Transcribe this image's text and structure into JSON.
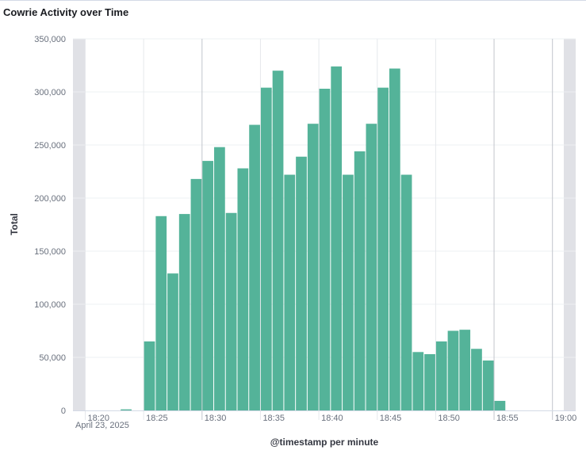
{
  "panel": {
    "title": "Cowrie Activity over Time"
  },
  "chart_data": {
    "type": "bar",
    "title": "Cowrie Activity over Time",
    "xlabel": "@timestamp per minute",
    "ylabel": "Total",
    "date_label": "April 23, 2025",
    "ylim": [
      0,
      350000
    ],
    "y_ticks": [
      0,
      50000,
      100000,
      150000,
      200000,
      250000,
      300000,
      350000
    ],
    "y_tick_labels": [
      "0",
      "50,000",
      "100,000",
      "150,000",
      "200,000",
      "250,000",
      "300,000",
      "350,000"
    ],
    "x_ticks": [
      "18:20",
      "18:25",
      "18:30",
      "18:35",
      "18:40",
      "18:45",
      "18:50",
      "18:55",
      "19:00"
    ],
    "grid": true,
    "bar_color": "#54b399",
    "categories": [
      "18:21",
      "18:22",
      "18:23",
      "18:24",
      "18:25",
      "18:26",
      "18:27",
      "18:28",
      "18:29",
      "18:30",
      "18:31",
      "18:32",
      "18:33",
      "18:34",
      "18:35",
      "18:36",
      "18:37",
      "18:38",
      "18:39",
      "18:40",
      "18:41",
      "18:42",
      "18:43",
      "18:44",
      "18:45",
      "18:46",
      "18:47",
      "18:48",
      "18:49",
      "18:50",
      "18:51",
      "18:52",
      "18:53",
      "18:54",
      "18:55",
      "18:56",
      "18:57",
      "18:58",
      "18:59"
    ],
    "values": [
      0,
      0,
      1000,
      0,
      65000,
      183000,
      129000,
      185000,
      218000,
      235000,
      248000,
      186000,
      228000,
      269000,
      304000,
      320000,
      222000,
      239000,
      270000,
      303000,
      324000,
      222000,
      244000,
      270000,
      304000,
      322000,
      222000,
      55000,
      53000,
      65000,
      75000,
      76000,
      58000,
      47000,
      9000,
      0,
      0,
      0,
      0
    ]
  }
}
